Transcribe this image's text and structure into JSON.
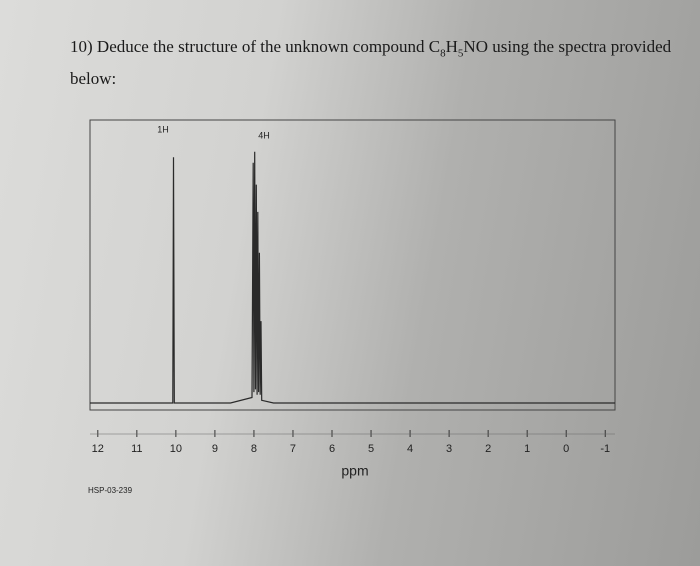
{
  "question": {
    "parts": [
      "10) Deduce the structure of the unknown compound C",
      "8",
      "H",
      "5",
      "NO using the spectra provided below:"
    ]
  },
  "chart_data": {
    "type": "line",
    "xlabel": "ppm",
    "annotations": [
      "1H",
      "4H"
    ],
    "sample_id": "HSP-03-239",
    "xlim": [
      12.2,
      -1.25
    ],
    "xticks": [
      12,
      11,
      10,
      9,
      8,
      7,
      6,
      5,
      4,
      3,
      2,
      1,
      0,
      -1
    ],
    "ylim": [
      0,
      100
    ],
    "series": [
      {
        "color": "#2a2a2a",
        "x": [
          12.2,
          10.08,
          10.06,
          10.04,
          8.6,
          8.05,
          8.02,
          8.0,
          7.98,
          7.96,
          7.94,
          7.92,
          7.9,
          7.88,
          7.86,
          7.84,
          7.82,
          7.8,
          7.5,
          -1.25
        ],
        "values": [
          0,
          0,
          90,
          0,
          0,
          2,
          88,
          4,
          92,
          5,
          80,
          3,
          70,
          4,
          55,
          3,
          30,
          1,
          0,
          0
        ]
      }
    ]
  }
}
